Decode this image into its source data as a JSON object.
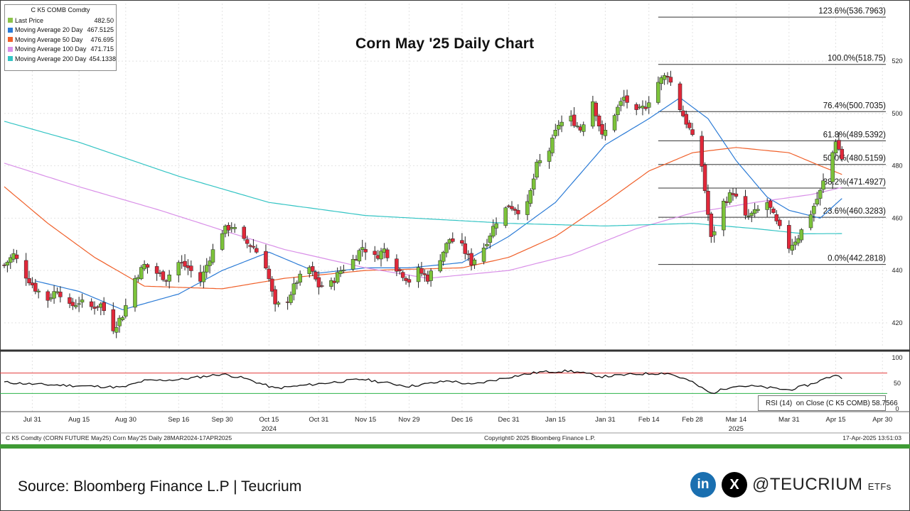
{
  "title": "Corn May '25 Daily Chart",
  "legend": {
    "title": "C K5 COMB Comdty",
    "items": [
      {
        "label": "Last Price",
        "value": "482.50",
        "color": "#8bc34a"
      },
      {
        "label": "Moving Average 20 Day",
        "value": "467.5125",
        "color": "#2b7bd6"
      },
      {
        "label": "Moving Average 50 Day",
        "value": "476.695",
        "color": "#f0602a"
      },
      {
        "label": "Moving Average 100 Day",
        "value": "471.715",
        "color": "#d990e8"
      },
      {
        "label": "Moving Average 200 Day",
        "value": "454.1338",
        "color": "#33c4c4"
      }
    ]
  },
  "chart_data": {
    "type": "candlestick",
    "title": "Corn May '25 Daily Chart",
    "y_ticks": [
      420,
      440,
      460,
      480,
      500,
      520
    ],
    "ylim": [
      411,
      542
    ],
    "date_start": "2024-07-22",
    "date_end": "2025-05-02",
    "x_ticks": [
      {
        "label": "Jul 31",
        "date": "2024-07-31"
      },
      {
        "label": "Aug 15",
        "date": "2024-08-15"
      },
      {
        "label": "Aug 30",
        "date": "2024-08-30"
      },
      {
        "label": "Sep 16",
        "date": "2024-09-16"
      },
      {
        "label": "Sep 30",
        "date": "2024-09-30"
      },
      {
        "label": "Oct 15",
        "date": "2024-10-15"
      },
      {
        "label": "Oct 31",
        "date": "2024-10-31"
      },
      {
        "label": "Nov 15",
        "date": "2024-11-15"
      },
      {
        "label": "Nov 29",
        "date": "2024-11-29"
      },
      {
        "label": "Dec 16",
        "date": "2024-12-16"
      },
      {
        "label": "Dec 31",
        "date": "2024-12-31"
      },
      {
        "label": "Jan 15",
        "date": "2025-01-15"
      },
      {
        "label": "Jan 31",
        "date": "2025-01-31"
      },
      {
        "label": "Feb 14",
        "date": "2025-02-14"
      },
      {
        "label": "Feb 28",
        "date": "2025-02-28"
      },
      {
        "label": "Mar 14",
        "date": "2025-03-14"
      },
      {
        "label": "Mar 31",
        "date": "2025-03-31"
      },
      {
        "label": "Apr 15",
        "date": "2025-04-15"
      },
      {
        "label": "Apr 30",
        "date": "2025-04-30"
      }
    ],
    "year_labels": [
      {
        "label": "2024",
        "date": "2024-10-15"
      },
      {
        "label": "2025",
        "date": "2025-03-14"
      }
    ],
    "price_series": {
      "name": "Last Price",
      "points": [
        [
          "2024-07-22",
          442
        ],
        [
          "2024-07-25",
          446
        ],
        [
          "2024-07-29",
          438
        ],
        [
          "2024-08-01",
          433
        ],
        [
          "2024-08-05",
          429
        ],
        [
          "2024-08-08",
          433
        ],
        [
          "2024-08-12",
          426
        ],
        [
          "2024-08-15",
          428
        ],
        [
          "2024-08-19",
          426
        ],
        [
          "2024-08-22",
          427
        ],
        [
          "2024-08-26",
          418
        ],
        [
          "2024-08-29",
          423
        ],
        [
          "2024-09-02",
          437
        ],
        [
          "2024-09-05",
          442
        ],
        [
          "2024-09-09",
          439
        ],
        [
          "2024-09-12",
          437
        ],
        [
          "2024-09-16",
          443
        ],
        [
          "2024-09-19",
          441
        ],
        [
          "2024-09-23",
          436
        ],
        [
          "2024-09-26",
          445
        ],
        [
          "2024-09-30",
          455
        ],
        [
          "2024-10-03",
          457
        ],
        [
          "2024-10-07",
          451
        ],
        [
          "2024-10-10",
          449
        ],
        [
          "2024-10-14",
          442
        ],
        [
          "2024-10-17",
          426
        ],
        [
          "2024-10-21",
          429
        ],
        [
          "2024-10-24",
          436
        ],
        [
          "2024-10-28",
          441
        ],
        [
          "2024-10-31",
          434
        ],
        [
          "2024-11-04",
          435
        ],
        [
          "2024-11-07",
          440
        ],
        [
          "2024-11-11",
          444
        ],
        [
          "2024-11-14",
          449
        ],
        [
          "2024-11-18",
          445
        ],
        [
          "2024-11-21",
          448
        ],
        [
          "2024-11-25",
          441
        ],
        [
          "2024-11-29",
          436
        ],
        [
          "2024-12-02",
          440
        ],
        [
          "2024-12-05",
          437
        ],
        [
          "2024-12-09",
          445
        ],
        [
          "2024-12-12",
          452
        ],
        [
          "2024-12-16",
          449
        ],
        [
          "2024-12-19",
          443
        ],
        [
          "2024-12-23",
          449
        ],
        [
          "2024-12-27",
          459
        ],
        [
          "2024-12-31",
          465
        ],
        [
          "2025-01-03",
          463
        ],
        [
          "2025-01-06",
          465
        ],
        [
          "2025-01-09",
          480
        ],
        [
          "2025-01-13",
          486
        ],
        [
          "2025-01-16",
          496
        ],
        [
          "2025-01-20",
          498
        ],
        [
          "2025-01-23",
          494
        ],
        [
          "2025-01-27",
          505
        ],
        [
          "2025-01-30",
          491
        ],
        [
          "2025-02-03",
          500
        ],
        [
          "2025-02-06",
          506
        ],
        [
          "2025-02-10",
          500
        ],
        [
          "2025-02-13",
          503
        ],
        [
          "2025-02-17",
          512
        ],
        [
          "2025-02-20",
          515
        ],
        [
          "2025-02-24",
          502
        ],
        [
          "2025-02-27",
          494
        ],
        [
          "2025-03-03",
          480
        ],
        [
          "2025-03-06",
          452
        ],
        [
          "2025-03-10",
          466
        ],
        [
          "2025-03-13",
          470
        ],
        [
          "2025-03-17",
          460
        ],
        [
          "2025-03-20",
          462
        ],
        [
          "2025-03-24",
          466
        ],
        [
          "2025-03-27",
          458
        ],
        [
          "2025-03-31",
          449
        ],
        [
          "2025-04-03",
          453
        ],
        [
          "2025-04-07",
          462
        ],
        [
          "2025-04-10",
          470
        ],
        [
          "2025-04-14",
          485
        ],
        [
          "2025-04-15",
          490
        ],
        [
          "2025-04-17",
          482.5
        ]
      ]
    },
    "moving_averages": [
      {
        "name": "Moving Average 20 Day",
        "color": "#2b7bd6",
        "points": [
          [
            "2024-08-01",
            436
          ],
          [
            "2024-08-15",
            432
          ],
          [
            "2024-08-29",
            425
          ],
          [
            "2024-09-16",
            431
          ],
          [
            "2024-09-30",
            440
          ],
          [
            "2024-10-15",
            447
          ],
          [
            "2024-10-31",
            439
          ],
          [
            "2024-11-15",
            441
          ],
          [
            "2024-11-29",
            441
          ],
          [
            "2024-12-16",
            443
          ],
          [
            "2024-12-31",
            453
          ],
          [
            "2025-01-15",
            466
          ],
          [
            "2025-01-31",
            488
          ],
          [
            "2025-02-14",
            498
          ],
          [
            "2025-02-24",
            506
          ],
          [
            "2025-03-05",
            498
          ],
          [
            "2025-03-14",
            482
          ],
          [
            "2025-03-24",
            468
          ],
          [
            "2025-03-31",
            463
          ],
          [
            "2025-04-10",
            460
          ],
          [
            "2025-04-17",
            467.5
          ]
        ]
      },
      {
        "name": "Moving Average 50 Day",
        "color": "#f0602a",
        "points": [
          [
            "2024-07-22",
            472
          ],
          [
            "2024-08-05",
            458
          ],
          [
            "2024-08-20",
            445
          ],
          [
            "2024-09-05",
            434
          ],
          [
            "2024-09-30",
            433
          ],
          [
            "2024-10-20",
            437
          ],
          [
            "2024-11-15",
            440
          ],
          [
            "2024-12-16",
            441
          ],
          [
            "2024-12-31",
            445
          ],
          [
            "2025-01-15",
            453
          ],
          [
            "2025-01-31",
            466
          ],
          [
            "2025-02-14",
            478
          ],
          [
            "2025-02-28",
            485
          ],
          [
            "2025-03-14",
            487
          ],
          [
            "2025-03-31",
            485
          ],
          [
            "2025-04-10",
            480
          ],
          [
            "2025-04-17",
            476.7
          ]
        ]
      },
      {
        "name": "Moving Average 100 Day",
        "color": "#d990e8",
        "points": [
          [
            "2024-07-22",
            481
          ],
          [
            "2024-08-15",
            472
          ],
          [
            "2024-09-10",
            463
          ],
          [
            "2024-10-01",
            455
          ],
          [
            "2024-10-20",
            448
          ],
          [
            "2024-11-15",
            441
          ],
          [
            "2024-12-05",
            437
          ],
          [
            "2024-12-31",
            440
          ],
          [
            "2025-01-20",
            446
          ],
          [
            "2025-02-10",
            456
          ],
          [
            "2025-02-28",
            462
          ],
          [
            "2025-03-20",
            466
          ],
          [
            "2025-04-07",
            469
          ],
          [
            "2025-04-17",
            471.7
          ]
        ]
      },
      {
        "name": "Moving Average 200 Day",
        "color": "#33c4c4",
        "points": [
          [
            "2024-07-22",
            497
          ],
          [
            "2024-08-15",
            489
          ],
          [
            "2024-09-16",
            476
          ],
          [
            "2024-10-15",
            466
          ],
          [
            "2024-11-15",
            461
          ],
          [
            "2024-12-16",
            459
          ],
          [
            "2024-12-31",
            458
          ],
          [
            "2025-01-31",
            457
          ],
          [
            "2025-02-28",
            458
          ],
          [
            "2025-03-20",
            456
          ],
          [
            "2025-04-05",
            454
          ],
          [
            "2025-04-17",
            454.1
          ]
        ]
      }
    ],
    "fibonacci": [
      {
        "label": "123.6%(536.7963)",
        "value": 536.7963
      },
      {
        "label": "100.0%(518.75)",
        "value": 518.75
      },
      {
        "label": "76.4%(500.7035)",
        "value": 500.7035
      },
      {
        "label": "61.8%(489.5392)",
        "value": 489.5392
      },
      {
        "label": "50.0%(480.5159)",
        "value": 480.5159
      },
      {
        "label": "38.2%(471.4927)",
        "value": 471.4927
      },
      {
        "label": "23.6%(460.3283)",
        "value": 460.3283
      },
      {
        "label": "0.0%(442.2818)",
        "value": 442.2818
      }
    ],
    "fib_start": "2025-02-17",
    "rsi": {
      "ticks": [
        0,
        50,
        100
      ],
      "overbought": 70,
      "oversold": 30,
      "points": [
        [
          "2024-07-22",
          52
        ],
        [
          "2024-08-01",
          48
        ],
        [
          "2024-08-15",
          45
        ],
        [
          "2024-08-29",
          42
        ],
        [
          "2024-09-05",
          55
        ],
        [
          "2024-09-16",
          57
        ],
        [
          "2024-09-30",
          68
        ],
        [
          "2024-10-07",
          60
        ],
        [
          "2024-10-17",
          40
        ],
        [
          "2024-10-31",
          49
        ],
        [
          "2024-11-14",
          58
        ],
        [
          "2024-11-29",
          44
        ],
        [
          "2024-12-12",
          55
        ],
        [
          "2024-12-19",
          47
        ],
        [
          "2024-12-31",
          62
        ],
        [
          "2025-01-10",
          72
        ],
        [
          "2025-01-20",
          74
        ],
        [
          "2025-01-30",
          63
        ],
        [
          "2025-02-10",
          68
        ],
        [
          "2025-02-20",
          70
        ],
        [
          "2025-02-27",
          55
        ],
        [
          "2025-03-06",
          30
        ],
        [
          "2025-03-13",
          45
        ],
        [
          "2025-03-20",
          44
        ],
        [
          "2025-03-31",
          37
        ],
        [
          "2025-04-07",
          48
        ],
        [
          "2025-04-15",
          67
        ],
        [
          "2025-04-17",
          58.8
        ]
      ]
    }
  },
  "rsi_label": {
    "name": "RSI (14)",
    "on": "on Close (C K5 COMB)",
    "value": "58.7566"
  },
  "footer": {
    "left": "C K5 Comdty (CORN FUTURE      May25) Corn May'25   Daily 28MAR2024-17APR2025",
    "center": "Copyright© 2025 Bloomberg Finance L.P.",
    "right": "17-Apr-2025  13:51:03"
  },
  "source": "Source: Bloomberg Finance L.P | Teucrium",
  "social": {
    "linkedin": "in",
    "x": "X",
    "handle": "@TEUCRIUM",
    "handle_suffix": "ETFs"
  }
}
